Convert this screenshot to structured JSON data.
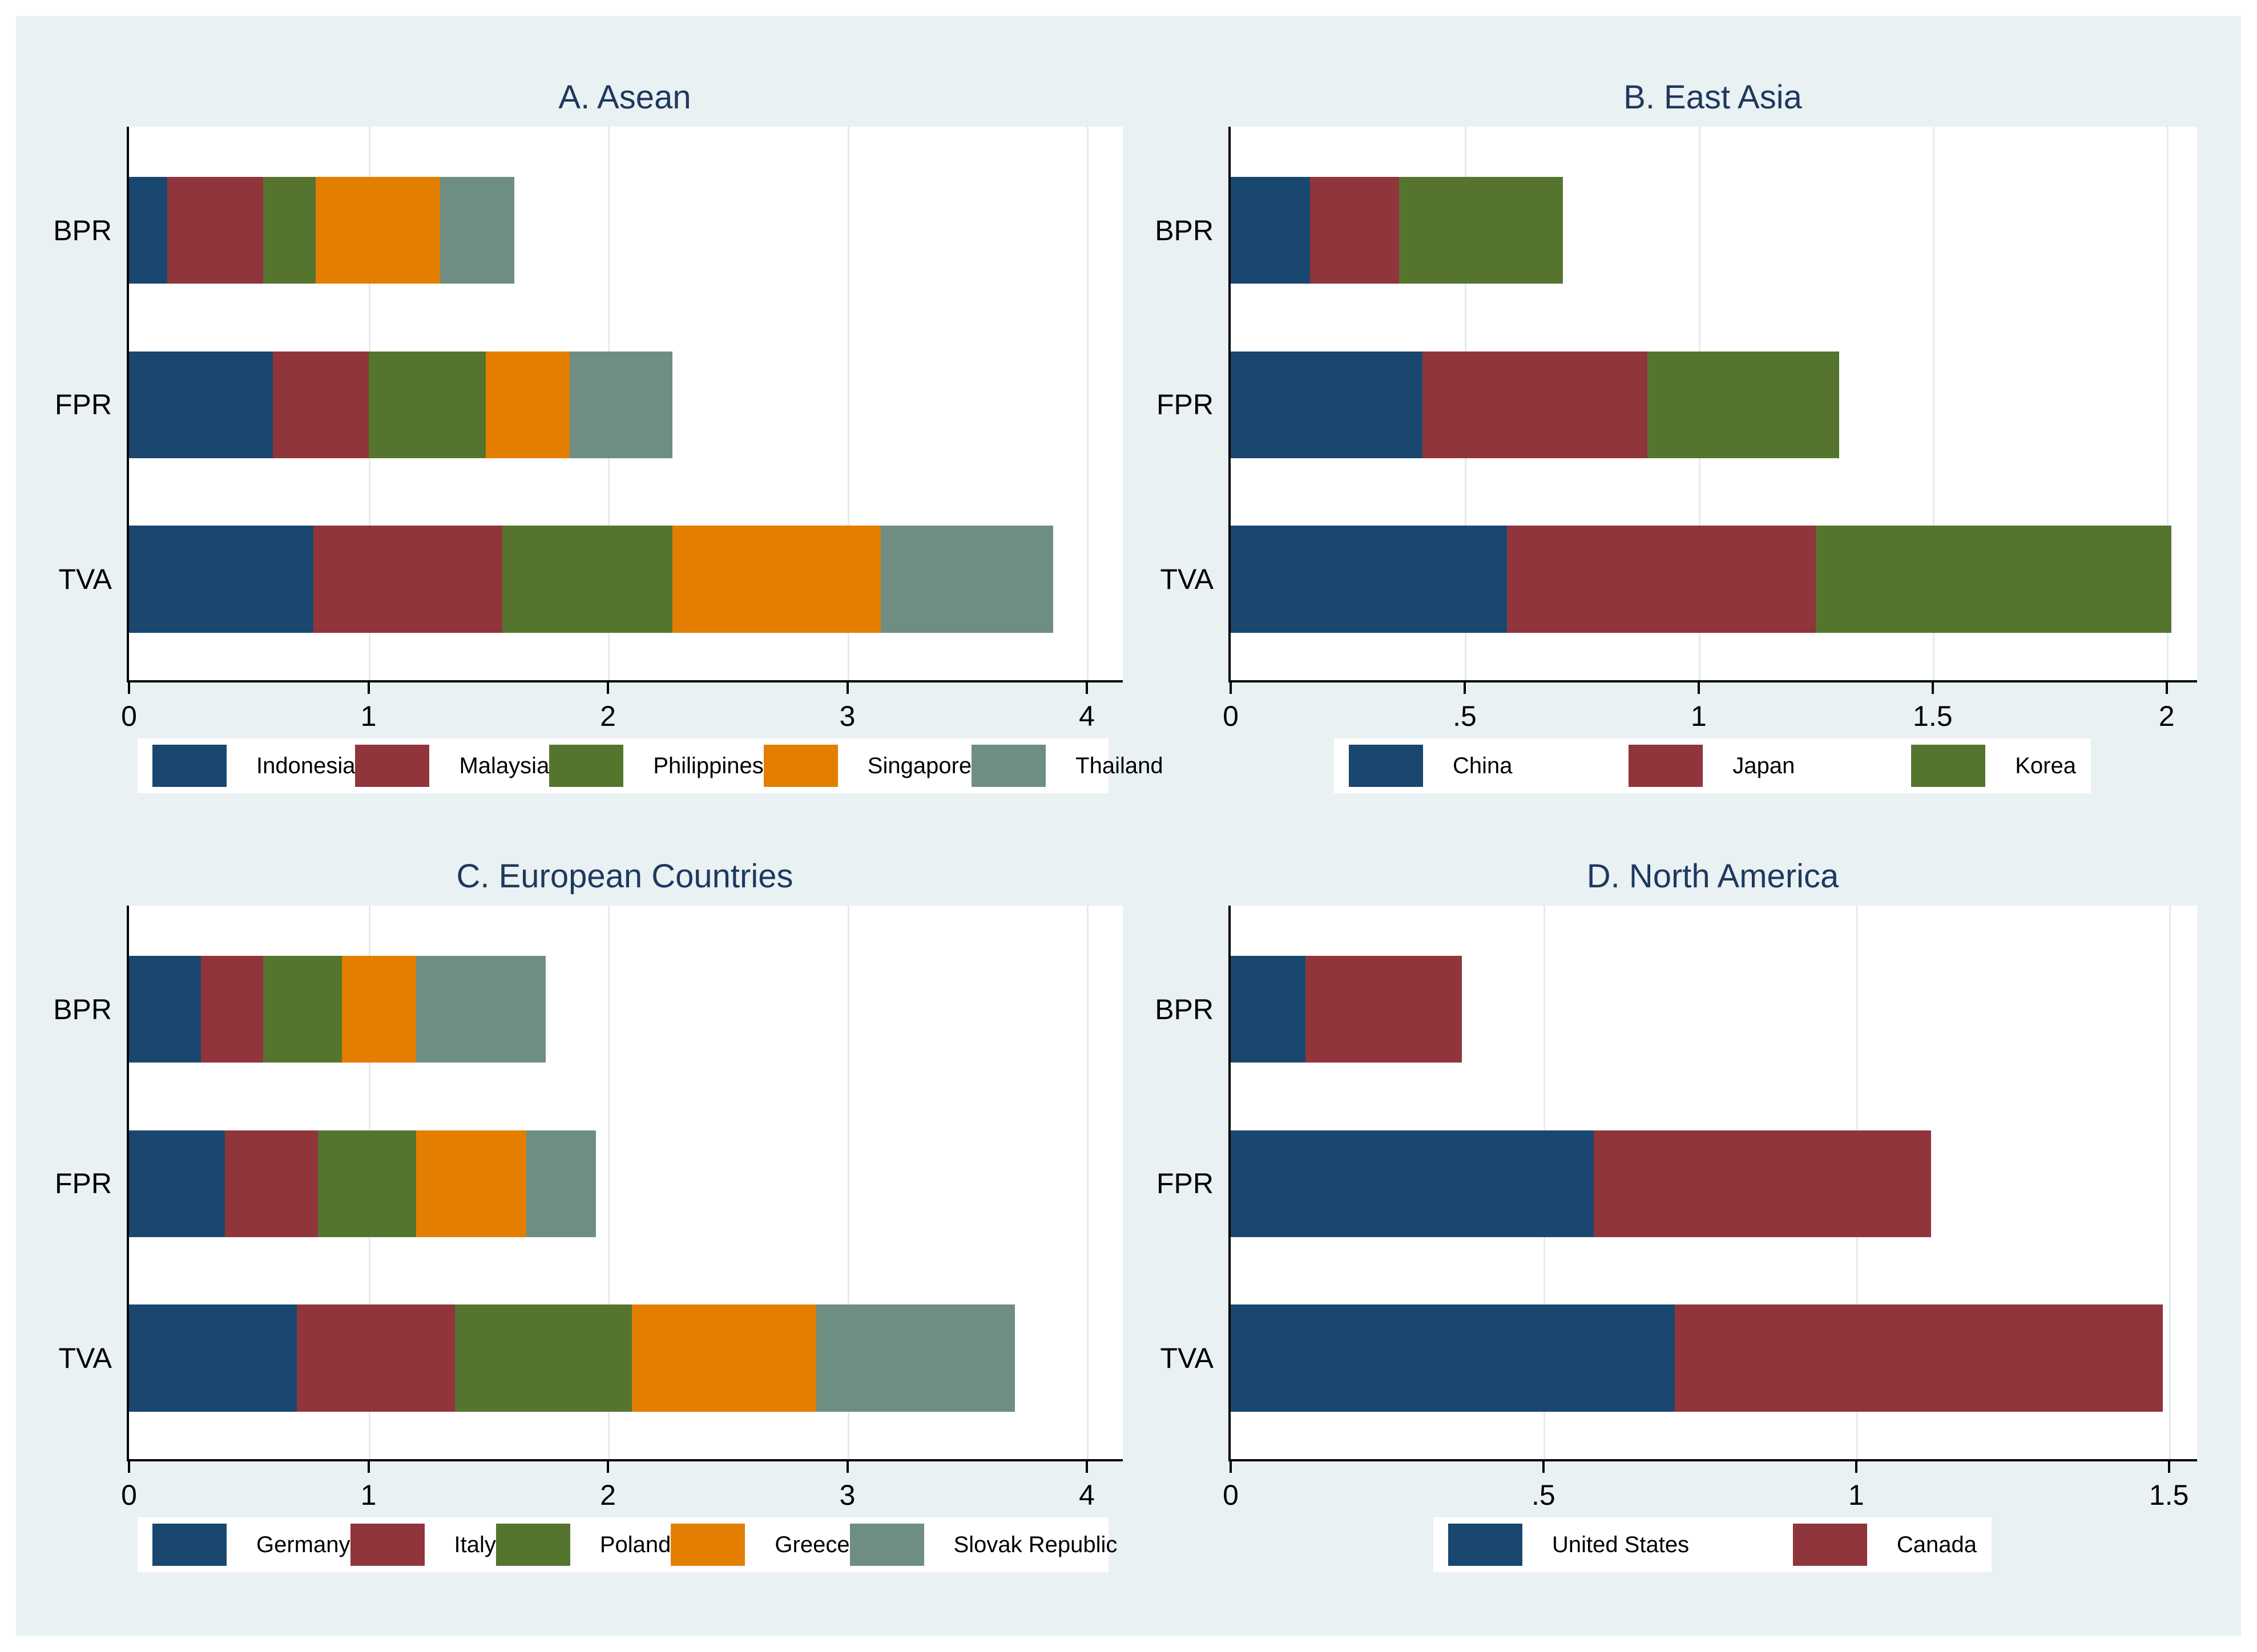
{
  "figure": {
    "background_color": "#ffffff",
    "canvas_color": "#eaf1f3",
    "title_color": "#1e395f",
    "grid_color": "#e2ecef",
    "axis_color": "#000000",
    "plot_background": "#ffffff"
  },
  "chart_data": [
    {
      "type": "bar",
      "orientation": "horizontal",
      "stacked": true,
      "title": "A. Asean",
      "categories": [
        "BPR",
        "FPR",
        "TVA"
      ],
      "series": [
        {
          "name": "Indonesia",
          "color": "#1a476f",
          "values": [
            0.16,
            0.6,
            0.77
          ]
        },
        {
          "name": "Malaysia",
          "color": "#90353b",
          "values": [
            0.4,
            0.4,
            0.79
          ]
        },
        {
          "name": "Philippines",
          "color": "#55752f",
          "values": [
            0.22,
            0.49,
            0.71
          ]
        },
        {
          "name": "Singapore",
          "color": "#e37e00",
          "values": [
            0.52,
            0.35,
            0.87
          ]
        },
        {
          "name": "Thailand",
          "color": "#6e8e84",
          "values": [
            0.31,
            0.43,
            0.72
          ]
        }
      ],
      "xlim": [
        0,
        4.15
      ],
      "ticks": [
        {
          "value": 0,
          "label": "0"
        },
        {
          "value": 1,
          "label": "1"
        },
        {
          "value": 2,
          "label": "2"
        },
        {
          "value": 3,
          "label": "3"
        },
        {
          "value": 4,
          "label": "4"
        }
      ],
      "grid": true,
      "legend_position": "bottom"
    },
    {
      "type": "bar",
      "orientation": "horizontal",
      "stacked": true,
      "title": "B. East Asia",
      "categories": [
        "BPR",
        "FPR",
        "TVA"
      ],
      "series": [
        {
          "name": "China",
          "color": "#1a476f",
          "values": [
            0.17,
            0.41,
            0.59
          ]
        },
        {
          "name": "Japan",
          "color": "#90353b",
          "values": [
            0.19,
            0.48,
            0.66
          ]
        },
        {
          "name": "Korea",
          "color": "#55752f",
          "values": [
            0.35,
            0.41,
            0.76
          ]
        }
      ],
      "xlim": [
        0,
        2.065
      ],
      "ticks": [
        {
          "value": 0,
          "label": "0"
        },
        {
          "value": 0.5,
          "label": ".5"
        },
        {
          "value": 1,
          "label": "1"
        },
        {
          "value": 1.5,
          "label": "1.5"
        },
        {
          "value": 2,
          "label": "2"
        }
      ],
      "grid": true,
      "legend_position": "bottom"
    },
    {
      "type": "bar",
      "orientation": "horizontal",
      "stacked": true,
      "title": "C. European Countries",
      "categories": [
        "BPR",
        "FPR",
        "TVA"
      ],
      "series": [
        {
          "name": "Germany",
          "color": "#1a476f",
          "values": [
            0.3,
            0.4,
            0.7
          ]
        },
        {
          "name": "Italy",
          "color": "#90353b",
          "values": [
            0.26,
            0.39,
            0.66
          ]
        },
        {
          "name": "Poland",
          "color": "#55752f",
          "values": [
            0.33,
            0.41,
            0.74
          ]
        },
        {
          "name": "Greece",
          "color": "#e37e00",
          "values": [
            0.31,
            0.46,
            0.77
          ]
        },
        {
          "name": "Slovak Republic",
          "color": "#6e8e84",
          "values": [
            0.54,
            0.29,
            0.83
          ]
        }
      ],
      "xlim": [
        0,
        4.15
      ],
      "ticks": [
        {
          "value": 0,
          "label": "0"
        },
        {
          "value": 1,
          "label": "1"
        },
        {
          "value": 2,
          "label": "2"
        },
        {
          "value": 3,
          "label": "3"
        },
        {
          "value": 4,
          "label": "4"
        }
      ],
      "grid": true,
      "legend_position": "bottom"
    },
    {
      "type": "bar",
      "orientation": "horizontal",
      "stacked": true,
      "title": "D. North America",
      "categories": [
        "BPR",
        "FPR",
        "TVA"
      ],
      "series": [
        {
          "name": "United States",
          "color": "#1a476f",
          "values": [
            0.12,
            0.58,
            0.71
          ]
        },
        {
          "name": "Canada",
          "color": "#90353b",
          "values": [
            0.25,
            0.54,
            0.78
          ]
        }
      ],
      "xlim": [
        0,
        1.545
      ],
      "ticks": [
        {
          "value": 0,
          "label": "0"
        },
        {
          "value": 0.5,
          "label": ".5"
        },
        {
          "value": 1,
          "label": "1"
        },
        {
          "value": 1.5,
          "label": "1.5"
        }
      ],
      "grid": true,
      "legend_position": "bottom"
    }
  ]
}
